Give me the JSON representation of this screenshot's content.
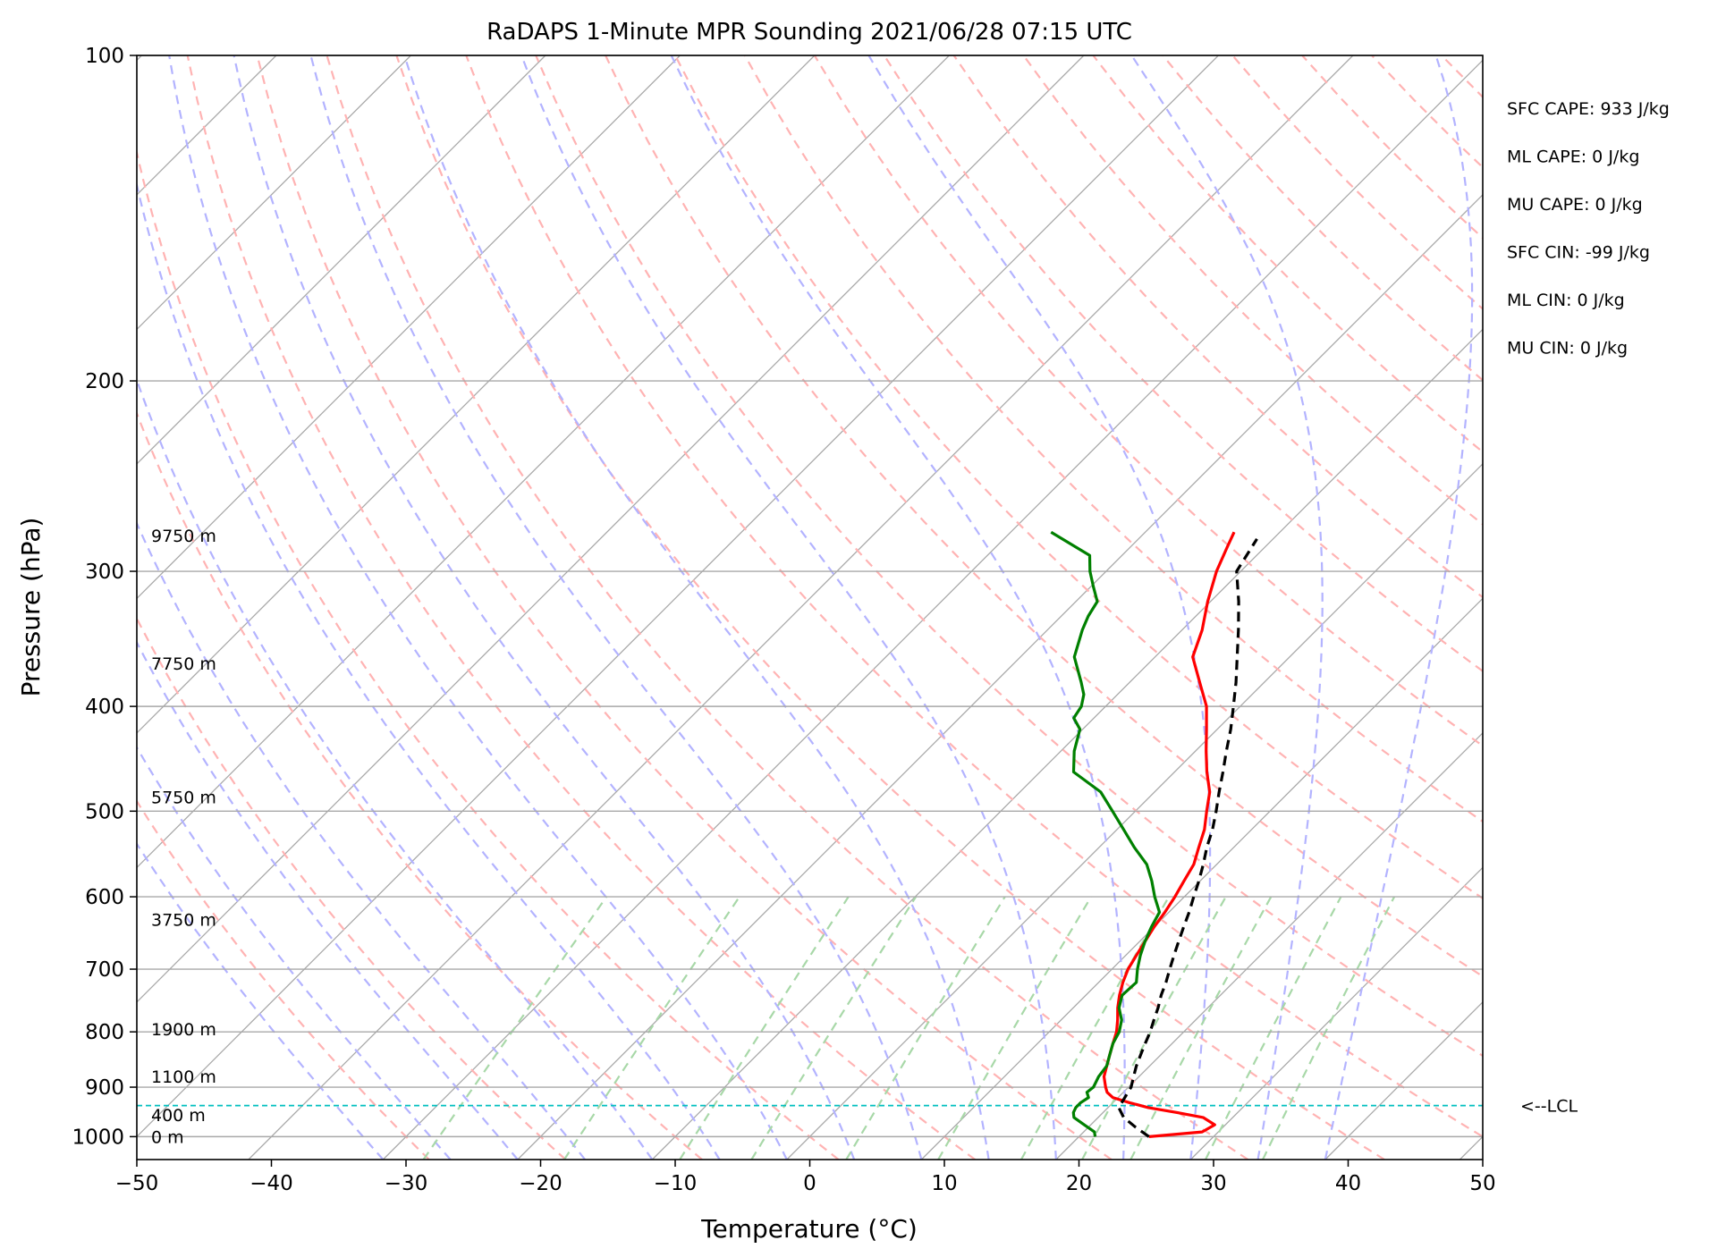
{
  "chart_data": {
    "type": "line",
    "title": "RaDAPS 1-Minute MPR Sounding 2021/06/28 07:15 UTC",
    "xlabel": "Temperature (°C)",
    "ylabel": "Pressure (hPa)",
    "xlim": [
      -50,
      50
    ],
    "ylim": [
      1050,
      100
    ],
    "y_scale": "log",
    "x_ticks": [
      "−50",
      "−40",
      "−30",
      "−20",
      "−10",
      "0",
      "10",
      "20",
      "30",
      "40",
      "50"
    ],
    "y_ticks": [
      "100",
      "200",
      "300",
      "400",
      "500",
      "600",
      "700",
      "800",
      "900",
      "1000"
    ],
    "grid": true,
    "series": [
      {
        "color": "#ff0000",
        "pressure": [
          1000,
          990,
          975,
          960,
          950,
          940,
          930,
          920,
          910,
          900,
          880,
          860,
          840,
          820,
          800,
          780,
          760,
          740,
          720,
          700,
          680,
          660,
          640,
          620,
          600,
          580,
          560,
          540,
          520,
          500,
          480,
          460,
          440,
          420,
          400,
          380,
          360,
          340,
          320,
          300,
          285,
          276
        ],
        "values": [
          25.2,
          28.8,
          29.2,
          27.8,
          25.5,
          23.0,
          21.2,
          19.6,
          18.8,
          18.3,
          17.4,
          16.8,
          16.2,
          15.6,
          15.0,
          14.2,
          13.3,
          12.5,
          11.8,
          11.2,
          10.8,
          10.4,
          10.0,
          9.7,
          9.3,
          8.8,
          8.3,
          7.4,
          6.5,
          5.3,
          4.1,
          2.4,
          0.8,
          -0.8,
          -2.5,
          -4.8,
          -7.2,
          -8.5,
          -10.2,
          -11.8,
          -12.8,
          -13.4
        ]
      },
      {
        "color": "#008000",
        "pressure": [
          1000,
          990,
          975,
          960,
          950,
          940,
          930,
          920,
          910,
          900,
          880,
          860,
          840,
          820,
          800,
          780,
          760,
          740,
          720,
          700,
          680,
          660,
          640,
          620,
          600,
          580,
          560,
          540,
          520,
          500,
          480,
          460,
          440,
          420,
          410,
          400,
          390,
          380,
          360,
          340,
          330,
          320,
          310,
          300,
          290,
          276
        ],
        "values": [
          21.2,
          20.8,
          19.5,
          18.2,
          17.8,
          17.6,
          17.6,
          17.8,
          17.3,
          17.4,
          17.0,
          16.8,
          16.2,
          15.6,
          15.2,
          14.5,
          13.4,
          12.7,
          12.8,
          11.9,
          11.1,
          10.4,
          9.8,
          9.3,
          7.8,
          6.4,
          4.8,
          2.6,
          0.5,
          -1.7,
          -4.0,
          -7.5,
          -9.0,
          -10.2,
          -11.5,
          -11.8,
          -12.5,
          -13.6,
          -16.0,
          -17.4,
          -18.0,
          -18.4,
          -19.8,
          -21.2,
          -22.4,
          -27.0
        ]
      },
      {
        "color": "#000000",
        "pressure": [
          1000,
          980,
          960,
          940,
          920,
          900,
          880,
          860,
          840,
          820,
          800,
          780,
          760,
          740,
          720,
          700,
          680,
          660,
          640,
          620,
          600,
          580,
          560,
          540,
          520,
          500,
          480,
          460,
          440,
          420,
          400,
          380,
          360,
          340,
          320,
          300,
          280
        ],
        "values": [
          25.2,
          23.5,
          21.9,
          20.8,
          20.5,
          20.2,
          19.6,
          19.0,
          18.5,
          18.0,
          17.5,
          16.9,
          16.3,
          15.6,
          15.0,
          14.3,
          13.6,
          12.9,
          12.2,
          11.5,
          10.7,
          9.9,
          9.0,
          8.0,
          7.1,
          6.0,
          4.8,
          3.6,
          2.3,
          1.0,
          -0.5,
          -2.1,
          -3.9,
          -5.8,
          -7.9,
          -10.3,
          -11.2
        ]
      }
    ],
    "lcl": {
      "pressure": 936,
      "label": "<--LCL",
      "color": "#00bfbf"
    },
    "height_labels": [
      {
        "pressure": 1000,
        "text": "0 m"
      },
      {
        "pressure": 955,
        "text": "400 m"
      },
      {
        "pressure": 880,
        "text": "1100 m"
      },
      {
        "pressure": 795,
        "text": "1900 m"
      },
      {
        "pressure": 630,
        "text": "3750 m"
      },
      {
        "pressure": 485,
        "text": "5750 m"
      },
      {
        "pressure": 365,
        "text": "7750 m"
      },
      {
        "pressure": 278,
        "text": "9750 m"
      }
    ],
    "indices": [
      "SFC CAPE: 933 J/kg",
      "ML CAPE: 0 J/kg",
      "MU CAPE: 0 J/kg",
      "SFC CIN: -99 J/kg",
      "ML CIN: 0 J/kg",
      "MU CIN: 0 J/kg"
    ],
    "background_colors": {
      "isotherms": "#a8a8a8",
      "dry_adiabats": "#ffb3b3",
      "moist_adiabats": "#b3b3ff",
      "mixing_ratio": "#a8d8a8"
    }
  }
}
